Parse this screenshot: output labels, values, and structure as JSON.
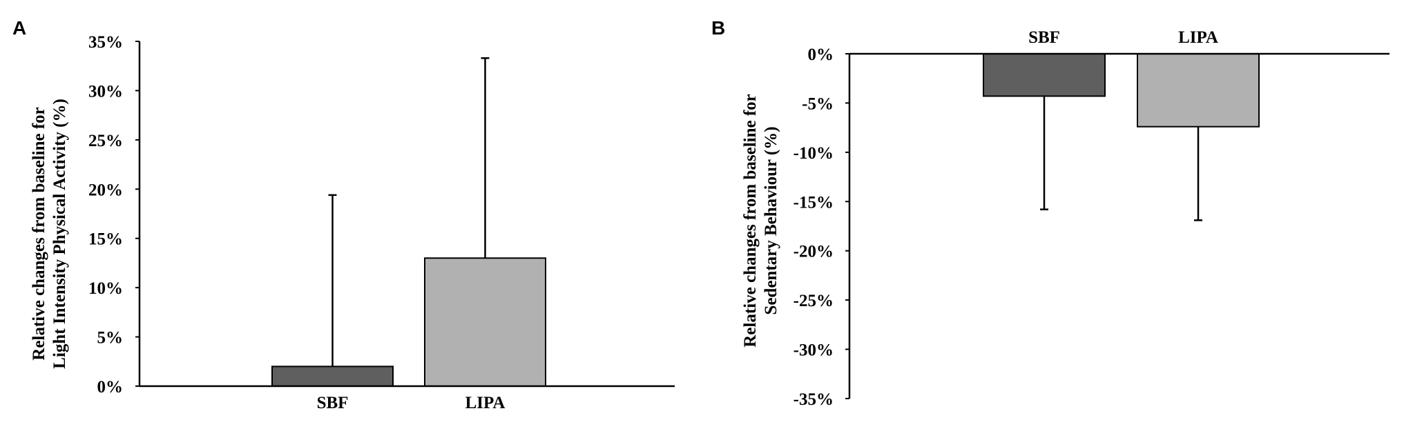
{
  "chart_data": [
    {
      "type": "bar",
      "panel": "A",
      "categories": [
        "SBF",
        "LIPA"
      ],
      "values": [
        2,
        13
      ],
      "error_upper": [
        19.4,
        33.3
      ],
      "colors": [
        "#5f5f5f",
        "#b1b1b1"
      ],
      "ylabel": [
        "Relative changes from baseline for",
        "Light Intensity Physical Activity (%)"
      ],
      "ylim": [
        0,
        35
      ],
      "yticks": [
        0,
        5,
        10,
        15,
        20,
        25,
        30,
        35
      ],
      "ytick_labels": [
        "0%",
        "5%",
        "10%",
        "15%",
        "20%",
        "25%",
        "30%",
        "35%"
      ],
      "grid": false
    },
    {
      "type": "bar",
      "panel": "B",
      "categories": [
        "SBF",
        "LIPA"
      ],
      "values": [
        -4.3,
        -7.4
      ],
      "error_lower": [
        -15.8,
        -16.9
      ],
      "colors": [
        "#5f5f5f",
        "#b1b1b1"
      ],
      "ylabel": [
        "Relative changes from baseline for",
        "Sedentary Behaviour (%)"
      ],
      "ylim": [
        -35,
        0
      ],
      "yticks": [
        0,
        -5,
        -10,
        -15,
        -20,
        -25,
        -30,
        -35
      ],
      "ytick_labels": [
        "0%",
        "-5%",
        "-10%",
        "-15%",
        "-20%",
        "-25%",
        "-30%",
        "-35%"
      ],
      "grid": false
    }
  ]
}
